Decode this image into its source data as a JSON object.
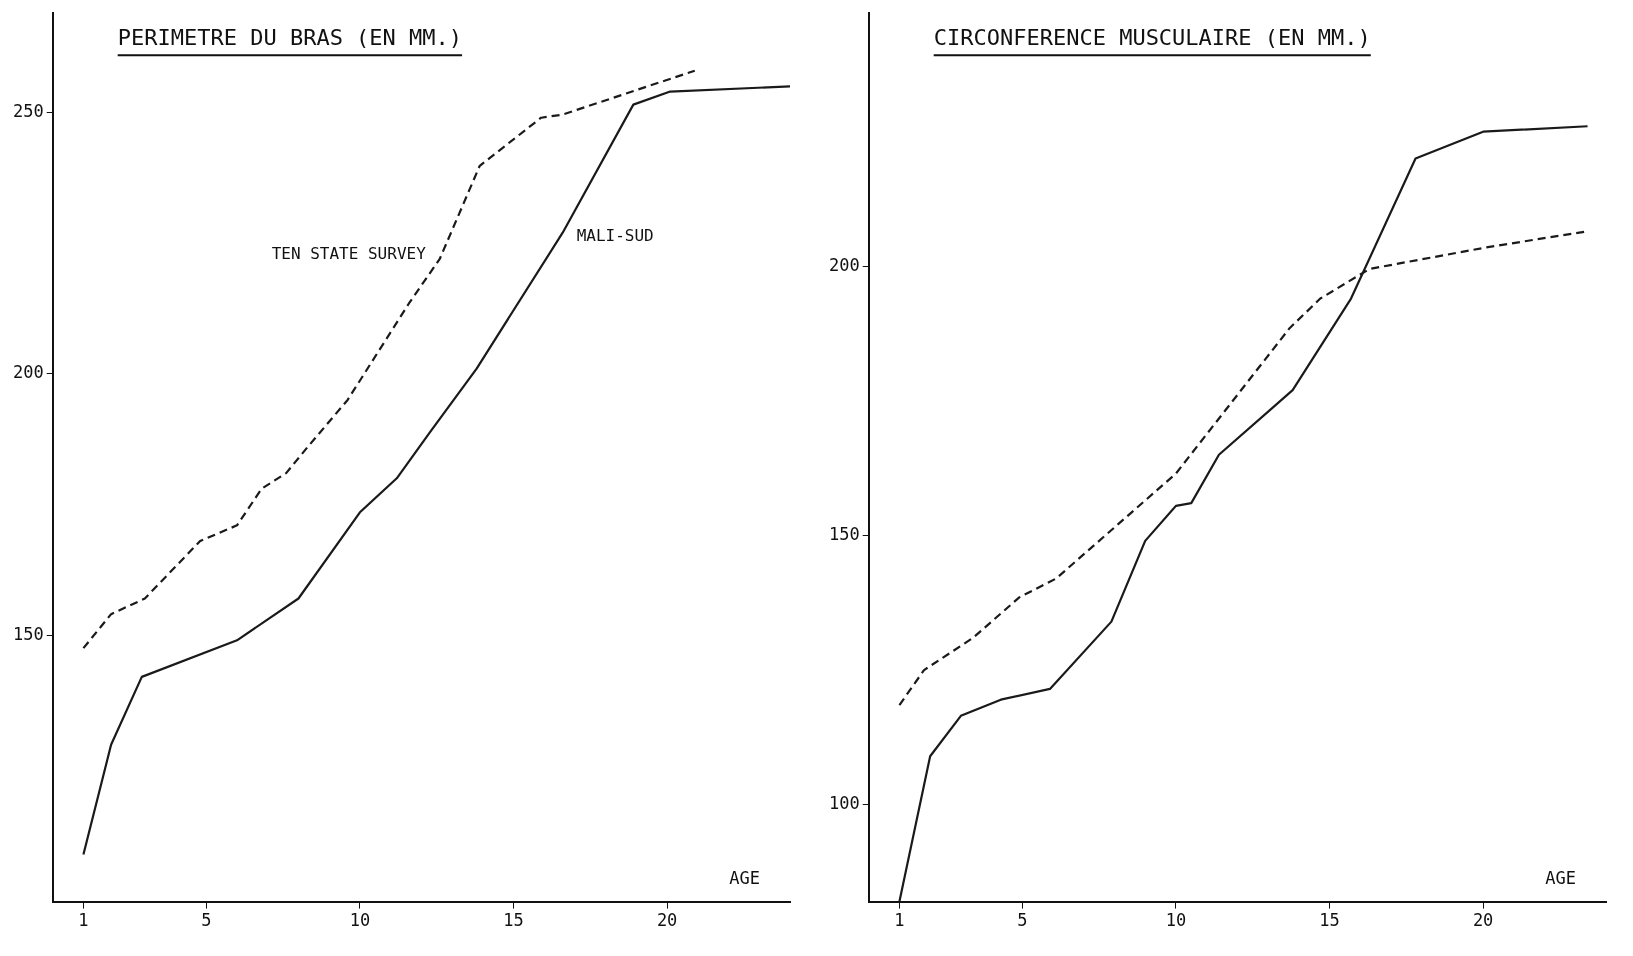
{
  "chart_data": [
    {
      "type": "line",
      "title": "PERIMETRE DU BRAS (EN MM.)",
      "xlabel": "AGE",
      "xlim": [
        0,
        24
      ],
      "xticks": [
        1,
        5,
        10,
        15,
        20
      ],
      "ylim": [
        99,
        269
      ],
      "yticks": [
        150,
        200,
        250
      ],
      "grid": false,
      "legend": false,
      "series": [
        {
          "name": "TEN STATE SURVEY",
          "color": "#1a1a1a",
          "line_style": "dashed",
          "x": [
            1,
            1.9,
            3,
            4.8,
            6,
            6.8,
            7.6,
            8.3,
            9.6,
            11.6,
            12.6,
            13.9,
            15.9,
            16.6,
            20.9
          ],
          "values": [
            147.5,
            154,
            157,
            168,
            171,
            178,
            181,
            186,
            195,
            213.5,
            222,
            239.8,
            249,
            249.6,
            258
          ]
        },
        {
          "name": "MALI-SUD",
          "color": "#1a1a1a",
          "line_style": "solid",
          "x": [
            1,
            1.9,
            2.9,
            6,
            8,
            10,
            11.2,
            12.3,
            13.8,
            16.6,
            18.9,
            20.1,
            24
          ],
          "values": [
            108,
            129,
            142,
            149,
            157,
            173.5,
            180,
            189,
            201,
            227,
            251.5,
            254,
            255
          ]
        }
      ]
    },
    {
      "type": "line",
      "title": "CIRCONFERENCE MUSCULAIRE (EN MM.)",
      "xlabel": "AGE",
      "xlim": [
        0,
        24
      ],
      "xticks": [
        1,
        5,
        10,
        15,
        20
      ],
      "ylim": [
        82,
        247
      ],
      "yticks": [
        100,
        150,
        200
      ],
      "grid": false,
      "legend": false,
      "series": [
        {
          "color": "#1a1a1a",
          "line_style": "dashed",
          "x": [
            1,
            1.8,
            3.4,
            4.9,
            6.1,
            10,
            13.7,
            14.7,
            16.3,
            20.1,
            23.4
          ],
          "values": [
            118.5,
            125,
            131,
            138.5,
            142,
            161.5,
            188.5,
            194,
            199.5,
            203.5,
            206.5
          ]
        },
        {
          "color": "#1a1a1a",
          "line_style": "solid",
          "x": [
            1,
            2,
            3,
            4.3,
            5.9,
            7.9,
            9,
            10,
            10.5,
            11.4,
            13.8,
            15.7,
            17.8,
            20,
            23.4
          ],
          "values": [
            82,
            109,
            116.5,
            119.5,
            121.5,
            134,
            149,
            155.5,
            156,
            165,
            177,
            194,
            220,
            225,
            226
          ]
        }
      ]
    }
  ]
}
